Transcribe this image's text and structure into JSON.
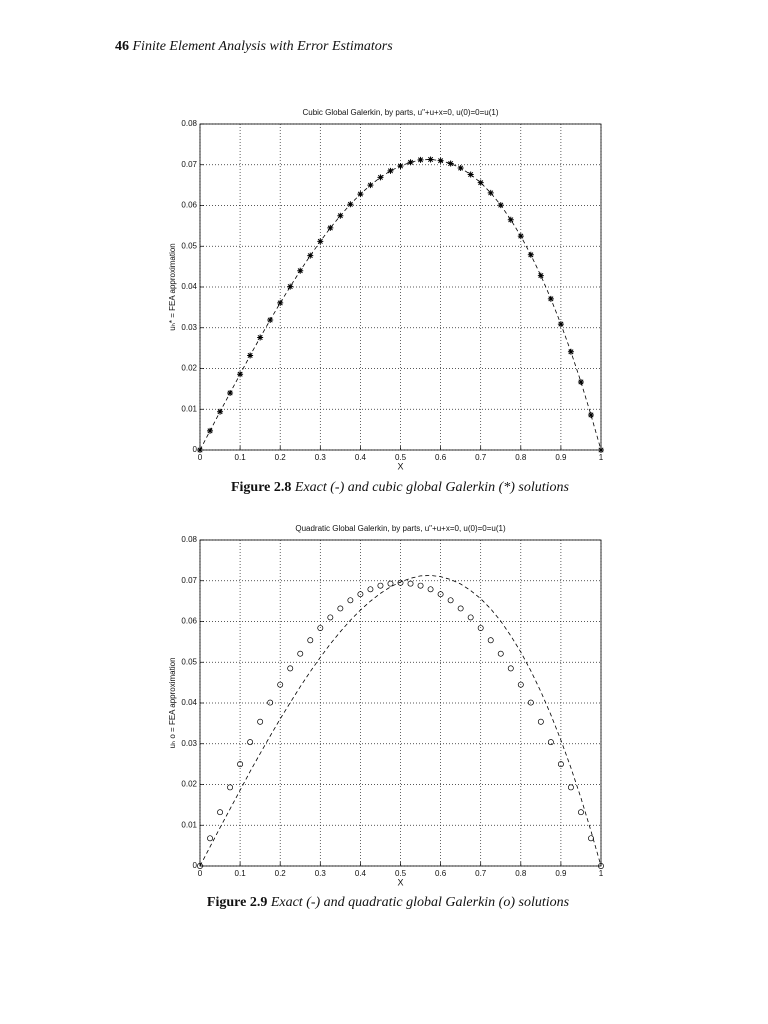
{
  "header": {
    "page": "46",
    "title": "Finite Element Analysis with Error Estimators"
  },
  "captions": [
    {
      "label": "Figure 2.8",
      "text": "Exact (-) and cubic global Galerkin (*) solutions"
    },
    {
      "label": "Figure 2.9",
      "text": "Exact (-) and quadratic global Galerkin (o) solutions"
    }
  ],
  "chart_data": [
    {
      "type": "line",
      "title": "Cubic Global Galerkin, by parts, u\"+u+x=0, u(0)=0=u(1)",
      "xlabel": "X",
      "ylabel": "uₕ* = FEA approximation",
      "xlim": [
        0,
        1
      ],
      "ylim": [
        0,
        0.08
      ],
      "xticks": [
        0,
        0.1,
        0.2,
        0.3,
        0.4,
        0.5,
        0.6,
        0.7,
        0.8,
        0.9,
        1
      ],
      "yticks": [
        0,
        0.01,
        0.02,
        0.03,
        0.04,
        0.05,
        0.06,
        0.07,
        0.08
      ],
      "grid": true,
      "x": [
        0,
        0.025,
        0.05,
        0.075,
        0.1,
        0.125,
        0.15,
        0.175,
        0.2,
        0.225,
        0.25,
        0.275,
        0.3,
        0.325,
        0.35,
        0.375,
        0.4,
        0.425,
        0.45,
        0.475,
        0.5,
        0.525,
        0.55,
        0.575,
        0.6,
        0.625,
        0.65,
        0.675,
        0.7,
        0.725,
        0.75,
        0.775,
        0.8,
        0.825,
        0.85,
        0.875,
        0.9,
        0.925,
        0.95,
        0.975,
        1
      ],
      "series": [
        {
          "marker": "star",
          "color": "#000000",
          "values": [
            0,
            0.0047,
            0.0094,
            0.014,
            0.0186,
            0.0232,
            0.0276,
            0.0319,
            0.0361,
            0.0401,
            0.044,
            0.0477,
            0.0512,
            0.0545,
            0.0575,
            0.0603,
            0.0628,
            0.065,
            0.0669,
            0.0685,
            0.0697,
            0.0706,
            0.0712,
            0.0713,
            0.071,
            0.0703,
            0.0692,
            0.0676,
            0.0656,
            0.0631,
            0.0601,
            0.0565,
            0.0525,
            0.0479,
            0.0428,
            0.0371,
            0.0309,
            0.0241,
            0.0167,
            0.0086,
            0
          ]
        },
        {
          "marker": "dashed",
          "color": "#000000",
          "values": [
            0,
            0.0047,
            0.0094,
            0.014,
            0.0186,
            0.0232,
            0.0276,
            0.0319,
            0.0361,
            0.0401,
            0.044,
            0.0477,
            0.0512,
            0.0545,
            0.0575,
            0.0603,
            0.0628,
            0.065,
            0.0669,
            0.0685,
            0.0697,
            0.0706,
            0.0712,
            0.0713,
            0.071,
            0.0703,
            0.0692,
            0.0676,
            0.0656,
            0.0631,
            0.0601,
            0.0565,
            0.0525,
            0.0479,
            0.0428,
            0.0371,
            0.0309,
            0.0241,
            0.0167,
            0.0086,
            0
          ]
        }
      ]
    },
    {
      "type": "line",
      "title": "Quadratic Global Galerkin, by parts, u\"+u+x=0, u(0)=0=u(1)",
      "xlabel": "X",
      "ylabel": "uₕ o = FEA approximation",
      "xlim": [
        0,
        1
      ],
      "ylim": [
        0,
        0.08
      ],
      "xticks": [
        0,
        0.1,
        0.2,
        0.3,
        0.4,
        0.5,
        0.6,
        0.7,
        0.8,
        0.9,
        1
      ],
      "yticks": [
        0,
        0.01,
        0.02,
        0.03,
        0.04,
        0.05,
        0.06,
        0.07,
        0.08
      ],
      "grid": true,
      "x": [
        0,
        0.025,
        0.05,
        0.075,
        0.1,
        0.125,
        0.15,
        0.175,
        0.2,
        0.225,
        0.25,
        0.275,
        0.3,
        0.325,
        0.35,
        0.375,
        0.4,
        0.425,
        0.45,
        0.475,
        0.5,
        0.525,
        0.55,
        0.575,
        0.6,
        0.625,
        0.65,
        0.675,
        0.7,
        0.725,
        0.75,
        0.775,
        0.8,
        0.825,
        0.85,
        0.875,
        0.9,
        0.925,
        0.95,
        0.975,
        1
      ],
      "series": [
        {
          "marker": "circle",
          "color": "#000000",
          "values": [
            0,
            0.0068,
            0.0132,
            0.0193,
            0.025,
            0.0304,
            0.0354,
            0.0401,
            0.0445,
            0.0485,
            0.0521,
            0.0554,
            0.0584,
            0.061,
            0.0632,
            0.0652,
            0.0667,
            0.0679,
            0.0688,
            0.0693,
            0.0695,
            0.0693,
            0.0688,
            0.0679,
            0.0667,
            0.0652,
            0.0632,
            0.061,
            0.0584,
            0.0554,
            0.0521,
            0.0485,
            0.0445,
            0.0401,
            0.0354,
            0.0304,
            0.025,
            0.0193,
            0.0132,
            0.0068,
            0
          ]
        },
        {
          "marker": "dashed",
          "color": "#000000",
          "values": [
            0,
            0.0047,
            0.0094,
            0.014,
            0.0186,
            0.0232,
            0.0276,
            0.0319,
            0.0361,
            0.0401,
            0.044,
            0.0477,
            0.0512,
            0.0545,
            0.0575,
            0.0603,
            0.0628,
            0.065,
            0.0669,
            0.0685,
            0.0697,
            0.0706,
            0.0712,
            0.0713,
            0.071,
            0.0703,
            0.0692,
            0.0676,
            0.0656,
            0.0631,
            0.0601,
            0.0565,
            0.0525,
            0.0479,
            0.0428,
            0.0371,
            0.0309,
            0.0241,
            0.0167,
            0.0086,
            0
          ]
        }
      ]
    }
  ]
}
